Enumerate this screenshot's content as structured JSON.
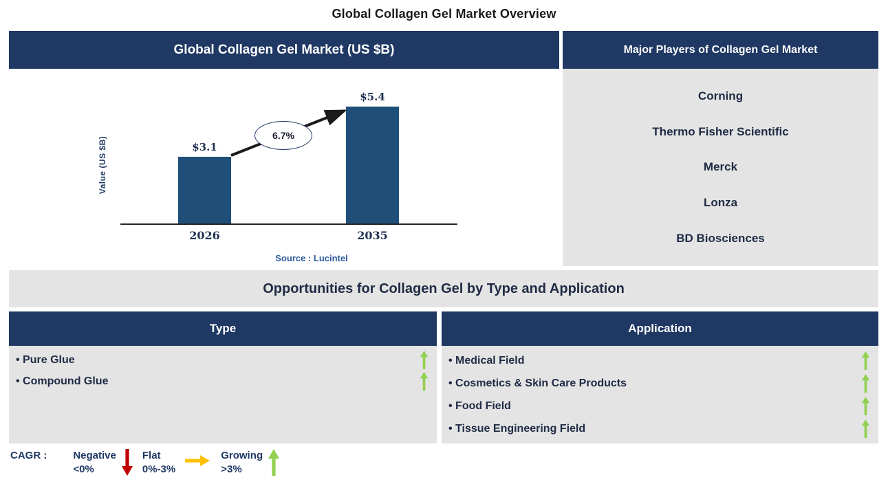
{
  "page_title": "Global Collagen Gel Market Overview",
  "market_chart": {
    "panel_title": "Global Collagen Gel Market (US $B)",
    "source": "Source : Lucintel"
  },
  "chart_data": {
    "type": "bar",
    "title": "Global Collagen Gel Market (US $B)",
    "categories": [
      "2026",
      "2035"
    ],
    "values": [
      3.1,
      5.4
    ],
    "value_labels": [
      "$3.1",
      "$5.4"
    ],
    "xlabel": "",
    "ylabel": "Value (US $B)",
    "ylim": [
      0,
      6
    ],
    "grid": false,
    "legend_position": "none",
    "annotation": "6.7%",
    "annotation_meaning": "CAGR from 2026 to 2035"
  },
  "major_players": {
    "panel_title": "Major Players of Collagen Gel Market",
    "companies": [
      "Corning",
      "Thermo Fisher Scientific",
      "Merck",
      "Lonza",
      "BD Biosciences"
    ]
  },
  "opportunities": {
    "section_title": "Opportunities for Collagen Gel by Type and Application",
    "type_column": {
      "header": "Type",
      "items": [
        {
          "label": "Pure Glue",
          "trend": "growing"
        },
        {
          "label": "Compound Glue",
          "trend": "growing"
        }
      ]
    },
    "application_column": {
      "header": "Application",
      "items": [
        {
          "label": "Medical Field",
          "trend": "growing"
        },
        {
          "label": "Cosmetics & Skin Care Products",
          "trend": "growing"
        },
        {
          "label": "Food Field",
          "trend": "growing"
        },
        {
          "label": "Tissue Engineering Field",
          "trend": "growing"
        }
      ]
    }
  },
  "legend": {
    "prefix": "CAGR :",
    "items": [
      {
        "label": "Negative",
        "range": "<0%",
        "arrow": "down"
      },
      {
        "label": "Flat",
        "range": "0%-3%",
        "arrow": "right"
      },
      {
        "label": "Growing",
        "range": ">3%",
        "arrow": "up"
      }
    ]
  },
  "colors": {
    "navy": "#1F3864",
    "bar_blue": "#1F4E79",
    "panel_gray": "#E4E4E4",
    "growing_green": "#92D050",
    "negative_red": "#C00000",
    "flat_amber": "#FFC000",
    "source_blue": "#2E5B9E",
    "arrow_black": "#1a1a1a"
  }
}
